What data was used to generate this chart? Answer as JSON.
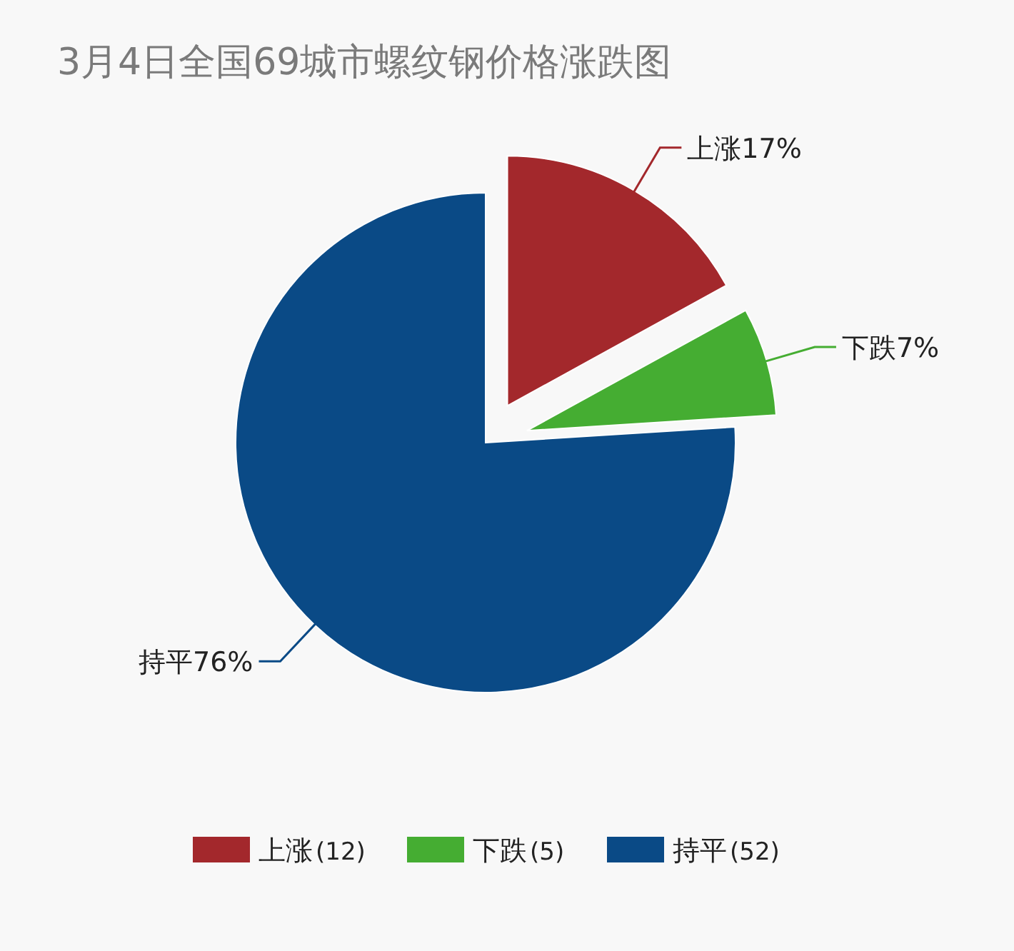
{
  "chart_data": {
    "type": "pie",
    "title": "3月4日全国69城市螺纹钢价格涨跌图",
    "categories": [
      "上涨",
      "下跌",
      "持平"
    ],
    "values": [
      17,
      7,
      76
    ],
    "annotations": [
      "(12)",
      "(5)",
      "(52)"
    ],
    "value_labels": [
      "17%",
      "7%",
      "76%"
    ],
    "colors": [
      "#a3282c",
      "#45ad32",
      "#0a4a86"
    ],
    "legend": "bottom"
  }
}
